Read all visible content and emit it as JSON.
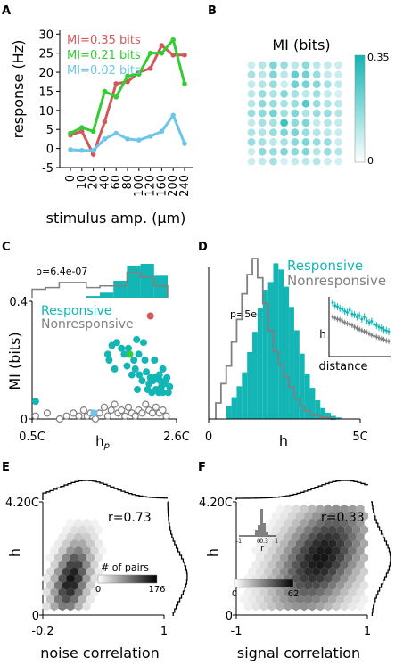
{
  "figure": {
    "panel_letters": [
      "A",
      "B",
      "C",
      "D",
      "E",
      "F"
    ]
  },
  "chart_data": [
    {
      "panel": "A",
      "type": "line",
      "xlabel": "stimulus amp. (μm)",
      "ylabel": "response (Hz)",
      "categories": [
        "0",
        "10",
        "20",
        "40",
        "60",
        "80",
        "100",
        "120",
        "160",
        "200",
        "240"
      ],
      "yticks": [
        "-5",
        "0",
        "5",
        "10",
        "15",
        "20",
        "25",
        "30"
      ],
      "ylim": [
        -5,
        31
      ],
      "series": [
        {
          "name": "MI=0.35 bits",
          "color": "#d05a5a",
          "values": [
            3.5,
            4.5,
            -1.5,
            7,
            17,
            17.5,
            20,
            21,
            27,
            24.5,
            24.5
          ]
        },
        {
          "name": "MI=0.21 bits",
          "color": "#33cc33",
          "values": [
            4,
            5.5,
            4.5,
            15,
            13.5,
            19,
            19.5,
            25,
            25,
            28.5,
            17
          ]
        },
        {
          "name": "MI=0.02 bits",
          "color": "#6ec5ea",
          "values": [
            -0.3,
            -0.5,
            -0.5,
            2.5,
            4,
            2.5,
            2.2,
            3.2,
            4.5,
            8.7,
            1.3
          ]
        }
      ]
    },
    {
      "panel": "B",
      "type": "heatmap",
      "title": "MI (bits)",
      "colorbar": {
        "min_label": "0",
        "max_label": "0.35",
        "min": 0,
        "max": 0.35,
        "color": "#13b5b5"
      },
      "rows": 11,
      "cols": 9,
      "values": [
        [
          0.03,
          0.06,
          0.14,
          0.1,
          0.05,
          0.12,
          0.05,
          0.04,
          0.03
        ],
        [
          0.08,
          0.05,
          0.14,
          0.05,
          0.19,
          0.17,
          0.1,
          0.04,
          0.03
        ],
        [
          0.04,
          0.06,
          0.1,
          0.03,
          0.17,
          0.16,
          0.13,
          0.08,
          0.04
        ],
        [
          0.05,
          0.1,
          0.07,
          0.13,
          0.08,
          0.05,
          0.09,
          0.04,
          0.02
        ],
        [
          0.06,
          0.12,
          0.1,
          0.08,
          0.1,
          0.22,
          0.1,
          0.07,
          0.05
        ],
        [
          0.1,
          0.12,
          0.16,
          0.09,
          0.14,
          0.07,
          0.1,
          0.1,
          0.06
        ],
        [
          0.04,
          0.08,
          0.08,
          0.26,
          0.12,
          0.14,
          0.04,
          0.06,
          0.04
        ],
        [
          0.07,
          0.06,
          0.1,
          0.14,
          0.15,
          0.1,
          0.06,
          0.05,
          0.03
        ],
        [
          0.1,
          0.08,
          0.05,
          0.08,
          0.12,
          0.14,
          0.1,
          0.1,
          0.03
        ],
        [
          0.03,
          0.12,
          0.1,
          0.14,
          0.12,
          0.14,
          0.06,
          0.1,
          0.06
        ],
        [
          0.03,
          0.04,
          0.08,
          0.02,
          0.04,
          0.05,
          0.06,
          0.03,
          0.02
        ]
      ]
    },
    {
      "panel": "C",
      "type": "scatter",
      "xlabel": "h",
      "xlabel_sub": "p",
      "ylabel": "MI (bits)",
      "xticks": [
        "0.5C",
        "2.6C"
      ],
      "yticks": [
        "0",
        "0.4"
      ],
      "xlim": [
        0.5,
        2.6
      ],
      "ylim": [
        0,
        0.4
      ],
      "pvalue": "p=6.4e-07",
      "legend": [
        "Responsive",
        "Nonresponsive"
      ],
      "responsive": [
        [
          0.55,
          0.06
        ],
        [
          1.6,
          0.22
        ],
        [
          1.62,
          0.2
        ],
        [
          1.66,
          0.25
        ],
        [
          1.7,
          0.17
        ],
        [
          1.73,
          0.26
        ],
        [
          1.8,
          0.24
        ],
        [
          1.84,
          0.22
        ],
        [
          1.88,
          0.18
        ],
        [
          1.9,
          0.24
        ],
        [
          1.95,
          0.15
        ],
        [
          2.0,
          0.17
        ],
        [
          2.03,
          0.1
        ],
        [
          2.06,
          0.15
        ],
        [
          2.1,
          0.13
        ],
        [
          2.14,
          0.2
        ],
        [
          2.16,
          0.16
        ],
        [
          2.18,
          0.1
        ],
        [
          2.2,
          0.12
        ],
        [
          2.22,
          0.14
        ],
        [
          2.24,
          0.09
        ],
        [
          2.26,
          0.13
        ],
        [
          2.28,
          0.14
        ],
        [
          2.3,
          0.1
        ],
        [
          2.32,
          0.14
        ],
        [
          2.34,
          0.09
        ],
        [
          2.36,
          0.13
        ],
        [
          2.38,
          0.11
        ],
        [
          2.4,
          0.09
        ],
        [
          2.42,
          0.12
        ],
        [
          2.44,
          0.13
        ],
        [
          2.46,
          0.14
        ],
        [
          2.48,
          0.09
        ],
        [
          2.5,
          0.11
        ],
        [
          2.12,
          0.26
        ],
        [
          2.05,
          0.22
        ],
        [
          1.98,
          0.2
        ],
        [
          2.35,
          0.15
        ],
        [
          2.28,
          0.2
        ],
        [
          2.4,
          0.17
        ],
        [
          2.02,
          0.27
        ]
      ],
      "nonresponsive": [
        [
          0.55,
          0.01
        ],
        [
          0.72,
          0.02
        ],
        [
          0.9,
          0.0
        ],
        [
          1.0,
          0.01
        ],
        [
          1.1,
          0.02
        ],
        [
          1.18,
          0.01
        ],
        [
          1.25,
          0.03
        ],
        [
          1.3,
          0.01
        ],
        [
          1.35,
          0.02
        ],
        [
          1.42,
          0.0
        ],
        [
          1.48,
          0.02
        ],
        [
          1.55,
          0.04
        ],
        [
          1.6,
          0.01
        ],
        [
          1.65,
          0.03
        ],
        [
          1.7,
          0.05
        ],
        [
          1.75,
          0.02
        ],
        [
          1.8,
          0.03
        ],
        [
          1.85,
          0.01
        ],
        [
          1.9,
          0.04
        ],
        [
          1.95,
          0.02
        ],
        [
          2.0,
          0.01
        ],
        [
          2.05,
          0.03
        ],
        [
          2.1,
          0.02
        ],
        [
          2.15,
          0.05
        ],
        [
          2.2,
          0.03
        ],
        [
          2.25,
          0.02
        ],
        [
          2.3,
          0.04
        ],
        [
          2.35,
          0.02
        ],
        [
          2.4,
          0.03
        ],
        [
          2.45,
          0.01
        ]
      ],
      "highlighted": [
        {
          "name": "MI=0.35 bits",
          "color": "#d05a5a",
          "point": [
            2.22,
            0.35
          ]
        },
        {
          "name": "MI=0.21 bits",
          "color": "#33cc33",
          "point": [
            1.92,
            0.22
          ]
        },
        {
          "name": "MI=0.02 bits",
          "color": "#6ec5ea",
          "point": [
            1.4,
            0.02
          ]
        }
      ],
      "top_hist": {
        "nonresponsive": [
          0.25,
          0.3,
          0.45,
          0.45,
          0.3,
          0.35,
          0.35,
          0.75,
          0.6,
          0.35
        ],
        "responsive": [
          0,
          0,
          0,
          0,
          0.05,
          0.15,
          0.5,
          0.95,
          1.0,
          0.65
        ]
      }
    },
    {
      "panel": "D",
      "type": "bar",
      "xlabel": "h",
      "xticks": [
        "0",
        "5C"
      ],
      "pvalue": "p=5e-111",
      "legend": [
        "Responsive",
        "Nonresponsive"
      ],
      "responsive": [
        0,
        0.08,
        0.14,
        0.21,
        0.3,
        0.43,
        0.56,
        0.71,
        0.83,
        0.88,
        1.0,
        0.96,
        0.85,
        0.72,
        0.57,
        0.42,
        0.29,
        0.2,
        0.12,
        0.07,
        0.04,
        0.02,
        0.01
      ],
      "nonresponsive": [
        0.1,
        0.22,
        0.33,
        0.48,
        0.62,
        0.78,
        0.9,
        1.0,
        0.88,
        0.72,
        0.55,
        0.42,
        0.34,
        0.26,
        0.2,
        0.13,
        0.08,
        0.05,
        0.03,
        0.02,
        0.01,
        0.01,
        0
      ],
      "inset": {
        "xlabel": "distance",
        "ylabel": "h",
        "responsive": [
          0.95,
          0.9,
          0.88,
          0.85,
          0.83,
          0.8,
          0.78,
          0.82,
          0.75,
          0.74,
          0.7,
          0.72,
          0.66,
          0.7,
          0.63,
          0.6,
          0.62,
          0.57,
          0.55,
          0.52,
          0.5,
          0.47,
          0.46,
          0.44
        ],
        "nonresponsive": [
          0.7,
          0.68,
          0.66,
          0.65,
          0.62,
          0.6,
          0.58,
          0.57,
          0.55,
          0.52,
          0.5,
          0.48,
          0.46,
          0.44,
          0.43,
          0.4,
          0.38,
          0.36,
          0.35,
          0.33,
          0.31,
          0.3,
          0.28,
          0.27
        ]
      }
    },
    {
      "panel": "E",
      "type": "heatmap",
      "xlabel": "noise correlation",
      "ylabel": "h",
      "xticks": [
        "-0.2",
        "1"
      ],
      "yticks": [
        "0",
        "4.20C"
      ],
      "annotation": "r=0.73",
      "colorbar": {
        "label": "# of pairs",
        "min_label": "0",
        "max_label": "176",
        "min": 0,
        "max": 176
      }
    },
    {
      "panel": "F",
      "type": "heatmap",
      "xlabel": "signal correlation",
      "ylabel": "h",
      "xticks": [
        "-1",
        "1"
      ],
      "yticks": [
        "0",
        "4.20C"
      ],
      "annotation": "r=0.33",
      "colorbar": {
        "min_label": "0",
        "max_label": "62",
        "min": 0,
        "max": 62
      },
      "inset": {
        "xlabel": "r",
        "xticks": [
          "-1",
          "0",
          "0.3",
          "1"
        ]
      }
    }
  ]
}
